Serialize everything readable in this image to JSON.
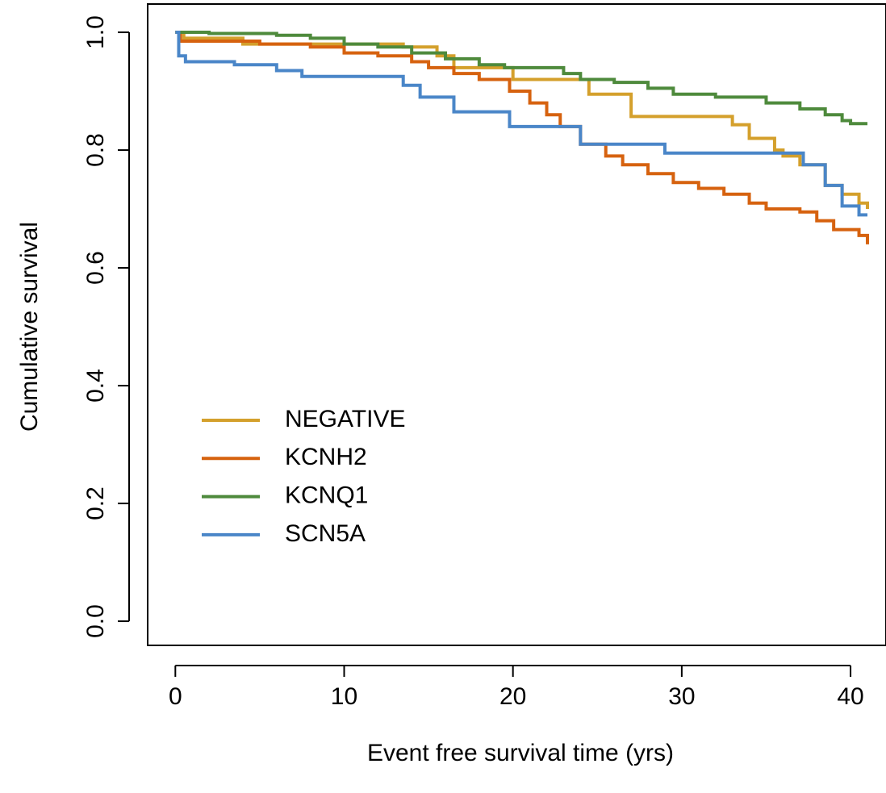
{
  "chart_data": {
    "type": "step",
    "xlabel": "Event free survival time (yrs)",
    "ylabel": "Cumulative survival",
    "xlim": [
      -1.64,
      42.1
    ],
    "ylim": [
      -0.041,
      1.048
    ],
    "xticks": [
      0,
      10,
      20,
      30,
      40
    ],
    "yticks": [
      {
        "value": 0,
        "label": "0.0"
      },
      0.2,
      0.4,
      0.6,
      0.8,
      {
        "value": 1,
        "label": "1.0"
      }
    ],
    "legend": "bottom-left",
    "series": [
      {
        "name": "NEGATIVE",
        "color": "#d4a02c",
        "x": [
          0,
          0.5,
          4,
          13.5,
          15.5,
          16.5,
          20,
          24.5,
          27,
          33,
          34,
          35.5,
          36,
          37,
          38.5,
          39.5,
          40.5,
          41
        ],
        "values": [
          1.0,
          0.99,
          0.98,
          0.975,
          0.96,
          0.94,
          0.92,
          0.895,
          0.857,
          0.843,
          0.82,
          0.8,
          0.79,
          0.775,
          0.74,
          0.725,
          0.71,
          0.7
        ]
      },
      {
        "name": "KCNH2",
        "color": "#d6620f",
        "x": [
          0,
          0.3,
          5,
          8,
          10,
          12,
          14,
          15,
          16.5,
          18,
          19.8,
          21,
          22,
          22.8,
          24,
          25.5,
          26.5,
          28,
          29.5,
          31,
          32.5,
          34,
          35,
          37,
          38,
          39,
          40.5,
          41
        ],
        "values": [
          1.0,
          0.985,
          0.98,
          0.975,
          0.965,
          0.96,
          0.95,
          0.94,
          0.93,
          0.92,
          0.9,
          0.88,
          0.86,
          0.84,
          0.81,
          0.79,
          0.775,
          0.76,
          0.745,
          0.735,
          0.725,
          0.71,
          0.7,
          0.695,
          0.68,
          0.665,
          0.655,
          0.64
        ]
      },
      {
        "name": "KCNQ1",
        "color": "#4e8a3c",
        "x": [
          0,
          2,
          6,
          8,
          10,
          12,
          14,
          16,
          18,
          19.5,
          23,
          24,
          26,
          28,
          29.5,
          32,
          35,
          37,
          38.5,
          39.5,
          40,
          41
        ],
        "values": [
          1.0,
          0.998,
          0.995,
          0.99,
          0.98,
          0.975,
          0.965,
          0.955,
          0.945,
          0.94,
          0.93,
          0.92,
          0.915,
          0.905,
          0.895,
          0.89,
          0.88,
          0.87,
          0.86,
          0.85,
          0.845,
          0.845
        ]
      },
      {
        "name": "SCN5A",
        "color": "#4a86c8",
        "x": [
          0,
          0.2,
          0.6,
          3.5,
          6,
          7.5,
          13.5,
          14.5,
          16.5,
          19.8,
          24,
          29,
          37.2,
          38.5,
          39.5,
          40.5,
          41
        ],
        "values": [
          1.0,
          0.96,
          0.95,
          0.945,
          0.935,
          0.925,
          0.91,
          0.89,
          0.865,
          0.84,
          0.81,
          0.795,
          0.775,
          0.74,
          0.705,
          0.69,
          0.69
        ]
      }
    ]
  }
}
